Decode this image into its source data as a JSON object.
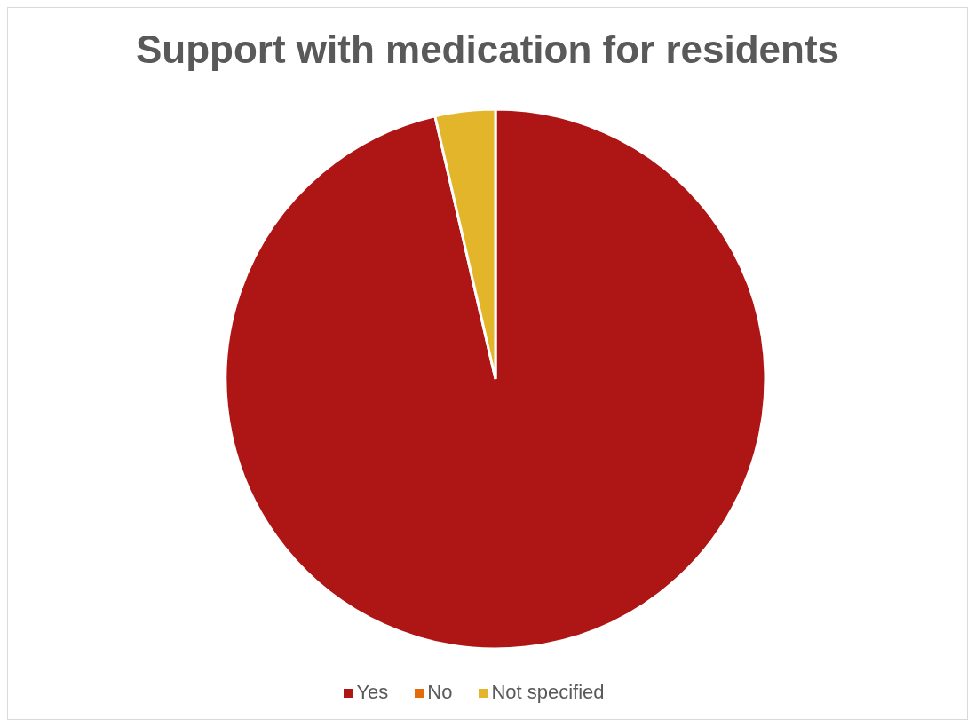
{
  "chart_data": {
    "type": "pie",
    "title": "Support with medication for residents",
    "categories": [
      "Yes",
      "No",
      "Not specified"
    ],
    "values": [
      96.4,
      0,
      3.6
    ],
    "colors": [
      "#ae1515",
      "#e36c0a",
      "#e3b52a"
    ],
    "legend": "bottom"
  }
}
